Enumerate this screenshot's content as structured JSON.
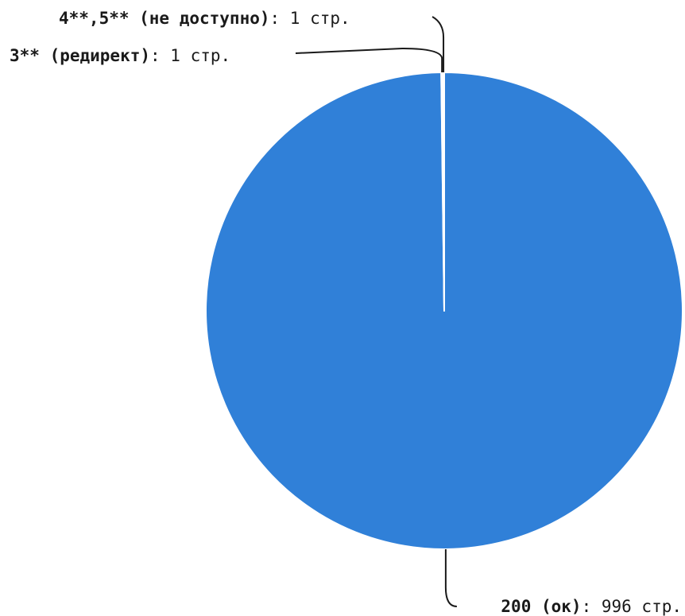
{
  "chart_data": {
    "type": "pie",
    "title": "",
    "unit": "стр.",
    "slices": [
      {
        "name": "200 (ок)",
        "value": 996,
        "color": "#3080d8"
      },
      {
        "name": "3** (редирект)",
        "value": 1,
        "color": "#4a4a4a"
      },
      {
        "name": "4**,5** (не доступно)",
        "value": 1,
        "color": "#101010"
      }
    ],
    "legend": "none",
    "data_labels": "outside-with-leader-lines"
  }
}
